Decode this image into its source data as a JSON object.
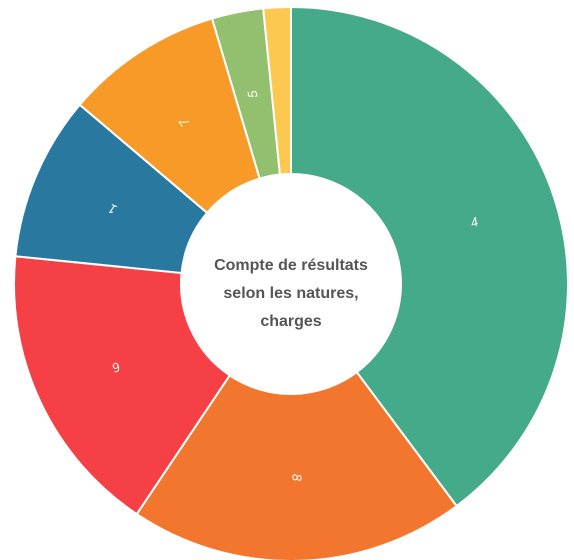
{
  "chart_data": {
    "type": "doughnut",
    "title": [
      "Compte de résultats",
      "selon les natures,",
      "charges"
    ],
    "categories": [
      "4",
      "8",
      "6",
      "1",
      "7",
      "5",
      null
    ],
    "values": [
      39.8,
      19.6,
      17.2,
      9.6,
      9.2,
      3.0,
      1.6
    ],
    "colors": [
      "#45aa8a",
      "#f2762e",
      "#f54046",
      "#2878a0",
      "#f79a27",
      "#93c06e",
      "#fcc850"
    ]
  }
}
